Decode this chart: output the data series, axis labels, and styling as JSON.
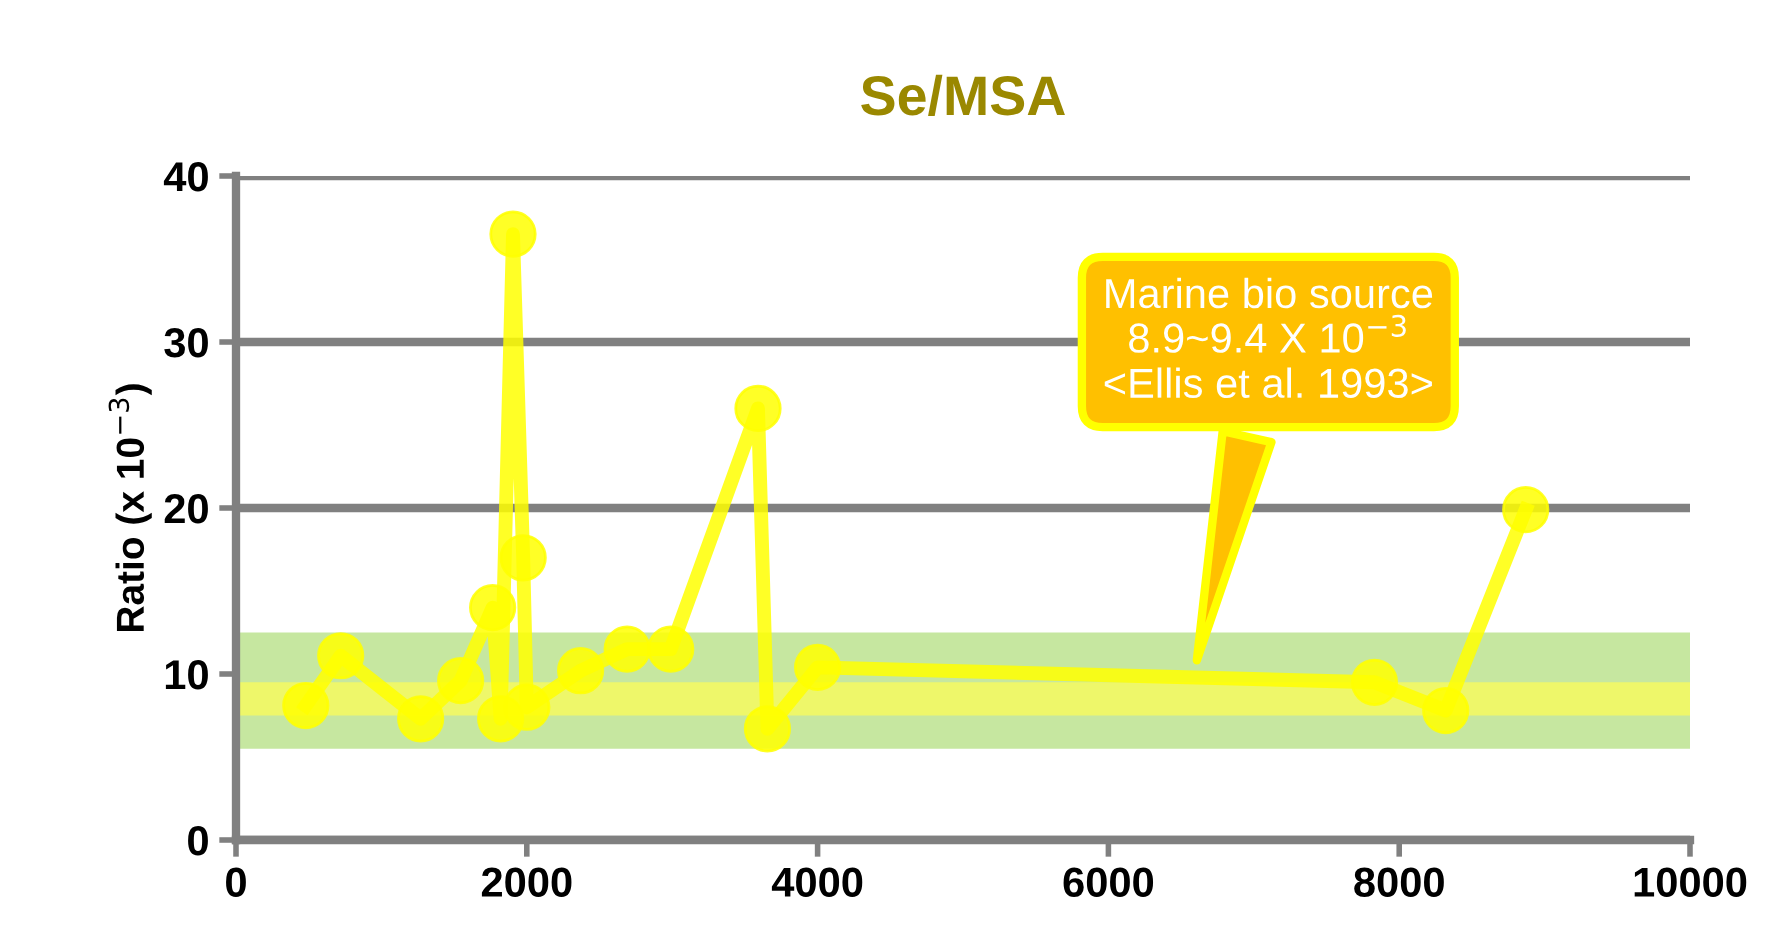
{
  "chart_data": {
    "type": "line",
    "title": "Se/MSA",
    "ylabel": "Ratio (x 10$^{−3}$)",
    "series": [
      {
        "color": "#ffff00",
        "x": [
          480,
          720,
          1270,
          1545,
          1765,
          1820,
          1905,
          1975,
          2000,
          2370,
          2690,
          2990,
          3590,
          3655,
          4000,
          7830,
          8320,
          8870
        ],
        "values": [
          8.1,
          11.1,
          7.3,
          9.6,
          14,
          7.3,
          36.5,
          17,
          8,
          10.2,
          11.5,
          11.5,
          26,
          6.7,
          10.4,
          9.5,
          7.8,
          19.9
        ]
      }
    ],
    "marker": "circle",
    "line_style": "solid",
    "xlim": [
      0,
      10000
    ],
    "xticks": [
      0,
      2000,
      4000,
      6000,
      8000,
      10000
    ],
    "ylim": [
      0,
      40
    ],
    "yticks": [
      0,
      10,
      20,
      30,
      40
    ],
    "grid": "y",
    "legend": false,
    "bands": [
      {
        "axis": "y",
        "from": 5.5,
        "to": 12.5,
        "color": "#c6e7a0"
      },
      {
        "axis": "y",
        "from": 7.5,
        "to": 9.5,
        "color": "#eef76a"
      }
    ],
    "annotations": [
      {
        "text": "Marine bio source\n8.9~9.4 X 10$^{−3}$\n<Ellis et al. 1993>",
        "x": 6600,
        "y": 10.5
      }
    ]
  }
}
